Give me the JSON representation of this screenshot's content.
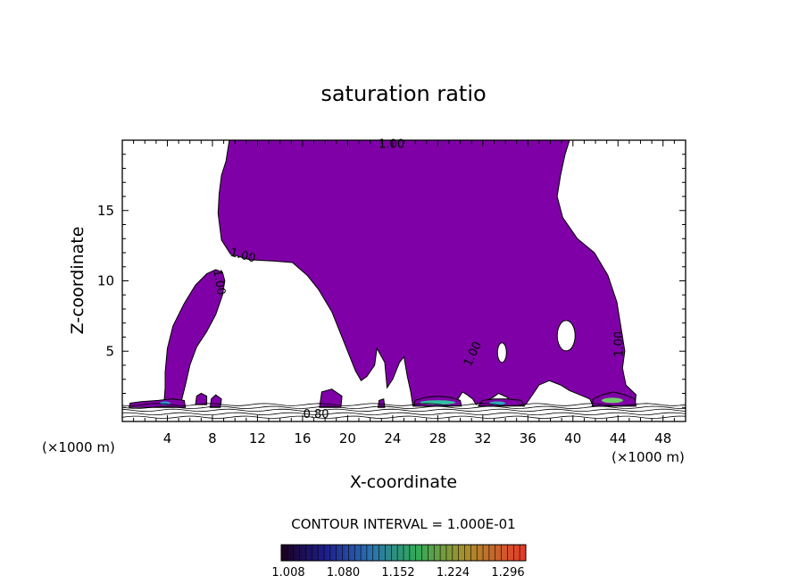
{
  "chart_data": {
    "type": "contour",
    "title": "saturation ratio",
    "xlabel": "X-coordinate",
    "ylabel": "Z-coordinate",
    "x_unit": "(×1000 m)",
    "y_unit": "(×1000 m)",
    "xlim": [
      0,
      50
    ],
    "ylim": [
      0,
      20
    ],
    "x_ticks": [
      4,
      8,
      12,
      16,
      20,
      24,
      28,
      32,
      36,
      40,
      44,
      48
    ],
    "y_ticks": [
      5,
      10,
      15
    ],
    "fill_threshold": 1.0,
    "fill_color": "#7f00a6",
    "contour_labels": [
      {
        "text": "1.00",
        "x": 23.9,
        "z": 19.7,
        "rotate": 0
      },
      {
        "text": "1.00",
        "x": 10.7,
        "z": 11.8,
        "rotate": 15
      },
      {
        "text": "1.00",
        "x": 8.6,
        "z": 9.9,
        "rotate": 80
      },
      {
        "text": "1.00",
        "x": 31.1,
        "z": 4.8,
        "rotate": -65
      },
      {
        "text": "1.00",
        "x": 44.1,
        "z": 5.5,
        "rotate": -90
      },
      {
        "text": "0.80",
        "x": 17.2,
        "z": 0.5,
        "rotate": 0
      }
    ],
    "contour_interval_label": "CONTOUR INTERVAL = 1.000E-01",
    "colorbar": {
      "labels": [
        "1.008",
        "1.080",
        "1.152",
        "1.224",
        "1.296"
      ]
    }
  }
}
